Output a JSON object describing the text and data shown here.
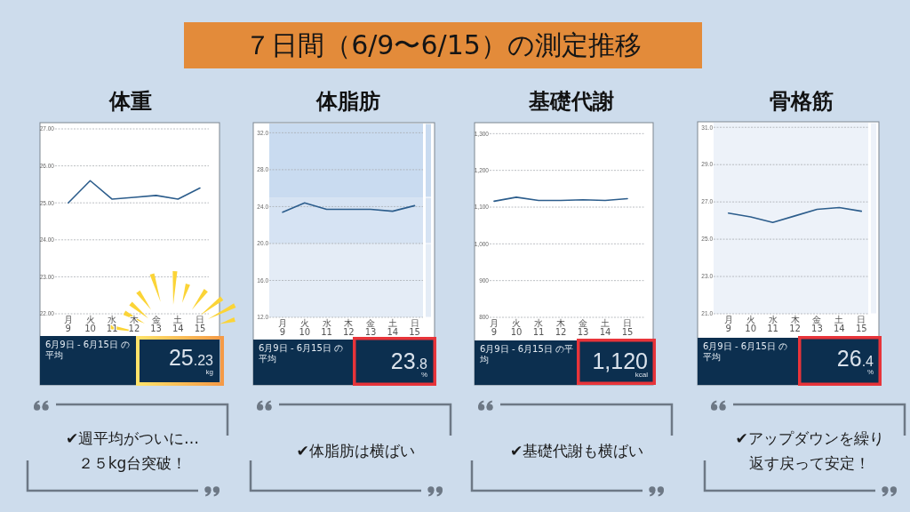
{
  "chart_data": [
    {
      "type": "other",
      "title": "７日間（6/9〜6/15）の測定推移"
    },
    {
      "type": "line",
      "title": "体重",
      "categories": [
        "月\n9",
        "火\n10",
        "水\n11",
        "木\n12",
        "金\n13",
        "土\n14",
        "日\n15"
      ],
      "ylim": [
        22,
        27
      ],
      "yticks": [
        {
          "value": 22,
          "label": "22.00"
        },
        {
          "value": 23,
          "label": "23.00"
        },
        {
          "value": 24,
          "label": "24.00"
        },
        {
          "value": 25,
          "label": "25.00"
        },
        {
          "value": 26,
          "label": "26.00"
        },
        {
          "value": 27,
          "label": "27.00"
        }
      ],
      "grid": "y",
      "series": [
        {
          "color": "#2c5d8c",
          "values": [
            25.0,
            25.6,
            25.1,
            25.15,
            25.2,
            25.1,
            25.4
          ]
        }
      ],
      "annotations": [
        "6月9日 - 6月15日 の平均",
        "25.23",
        "kg",
        "✔週平均がついに…\n２５kg台突破！"
      ]
    },
    {
      "type": "line",
      "title": "体脂肪",
      "categories": [
        "月\n9",
        "火\n10",
        "水\n11",
        "木\n12",
        "金\n13",
        "土\n14",
        "日\n15"
      ],
      "ylim": [
        12,
        33
      ],
      "yticks": [
        {
          "value": 12,
          "label": "12.0"
        },
        {
          "value": 16,
          "label": "16.0"
        },
        {
          "value": 20,
          "label": "20.0"
        },
        {
          "value": 24,
          "label": "24.0"
        },
        {
          "value": 28,
          "label": "28.0"
        },
        {
          "value": 32,
          "label": "32.0"
        }
      ],
      "grid": "y",
      "bands": [
        {
          "axis": "y",
          "from": 25,
          "to": 33,
          "color": "#c9dbf0"
        },
        {
          "axis": "y",
          "from": 20,
          "to": 25,
          "color": "#d6e3f3"
        },
        {
          "axis": "y",
          "from": 12,
          "to": 20,
          "color": "#e4ecf6"
        }
      ],
      "series": [
        {
          "color": "#2c5d8c",
          "values": [
            23.4,
            24.4,
            23.7,
            23.7,
            23.7,
            23.5,
            24.1
          ]
        }
      ],
      "annotations": [
        "6月9日 - 6月15日 の平均",
        "23.8",
        "%",
        "✔体脂肪は横ばい"
      ]
    },
    {
      "type": "line",
      "title": "基礎代謝",
      "categories": [
        "月\n9",
        "火\n10",
        "水\n11",
        "木\n12",
        "金\n13",
        "土\n14",
        "日\n15"
      ],
      "ylim": [
        800,
        1325
      ],
      "yticks": [
        {
          "value": 800,
          "label": "800"
        },
        {
          "value": 900,
          "label": "900"
        },
        {
          "value": 1000,
          "label": "1,000"
        },
        {
          "value": 1100,
          "label": "1,100"
        },
        {
          "value": 1200,
          "label": "1,200"
        },
        {
          "value": 1300,
          "label": "1,300"
        }
      ],
      "grid": "y",
      "series": [
        {
          "color": "#2c5d8c",
          "values": [
            1116,
            1127,
            1118,
            1118,
            1120,
            1118,
            1123
          ]
        }
      ],
      "annotations": [
        "6月9日 - 6月15日 の平均",
        "1,120",
        "kcal",
        "✔基礎代謝も横ばい"
      ]
    },
    {
      "type": "line",
      "title": "骨格筋",
      "categories": [
        "月\n9",
        "火\n10",
        "水\n11",
        "木\n12",
        "金\n13",
        "土\n14",
        "日\n15"
      ],
      "ylim": [
        21,
        31.25
      ],
      "yticks": [
        {
          "value": 21,
          "label": "21.0"
        },
        {
          "value": 23,
          "label": "23.0"
        },
        {
          "value": 25,
          "label": "25.0"
        },
        {
          "value": 27,
          "label": "27.0"
        },
        {
          "value": 29,
          "label": "29.0"
        },
        {
          "value": 31,
          "label": "31.0"
        }
      ],
      "grid": "y",
      "bands": [
        {
          "axis": "y",
          "from": 21,
          "to": 31.25,
          "color": "#edf2f9"
        }
      ],
      "series": [
        {
          "color": "#2c5d8c",
          "values": [
            26.4,
            26.2,
            25.9,
            26.25,
            26.6,
            26.7,
            26.5
          ]
        }
      ],
      "annotations": [
        "6月9日 - 6月15日 の平均",
        "26.4",
        "%",
        "✔アップダウンを繰り返す戻って安定！"
      ]
    }
  ]
}
